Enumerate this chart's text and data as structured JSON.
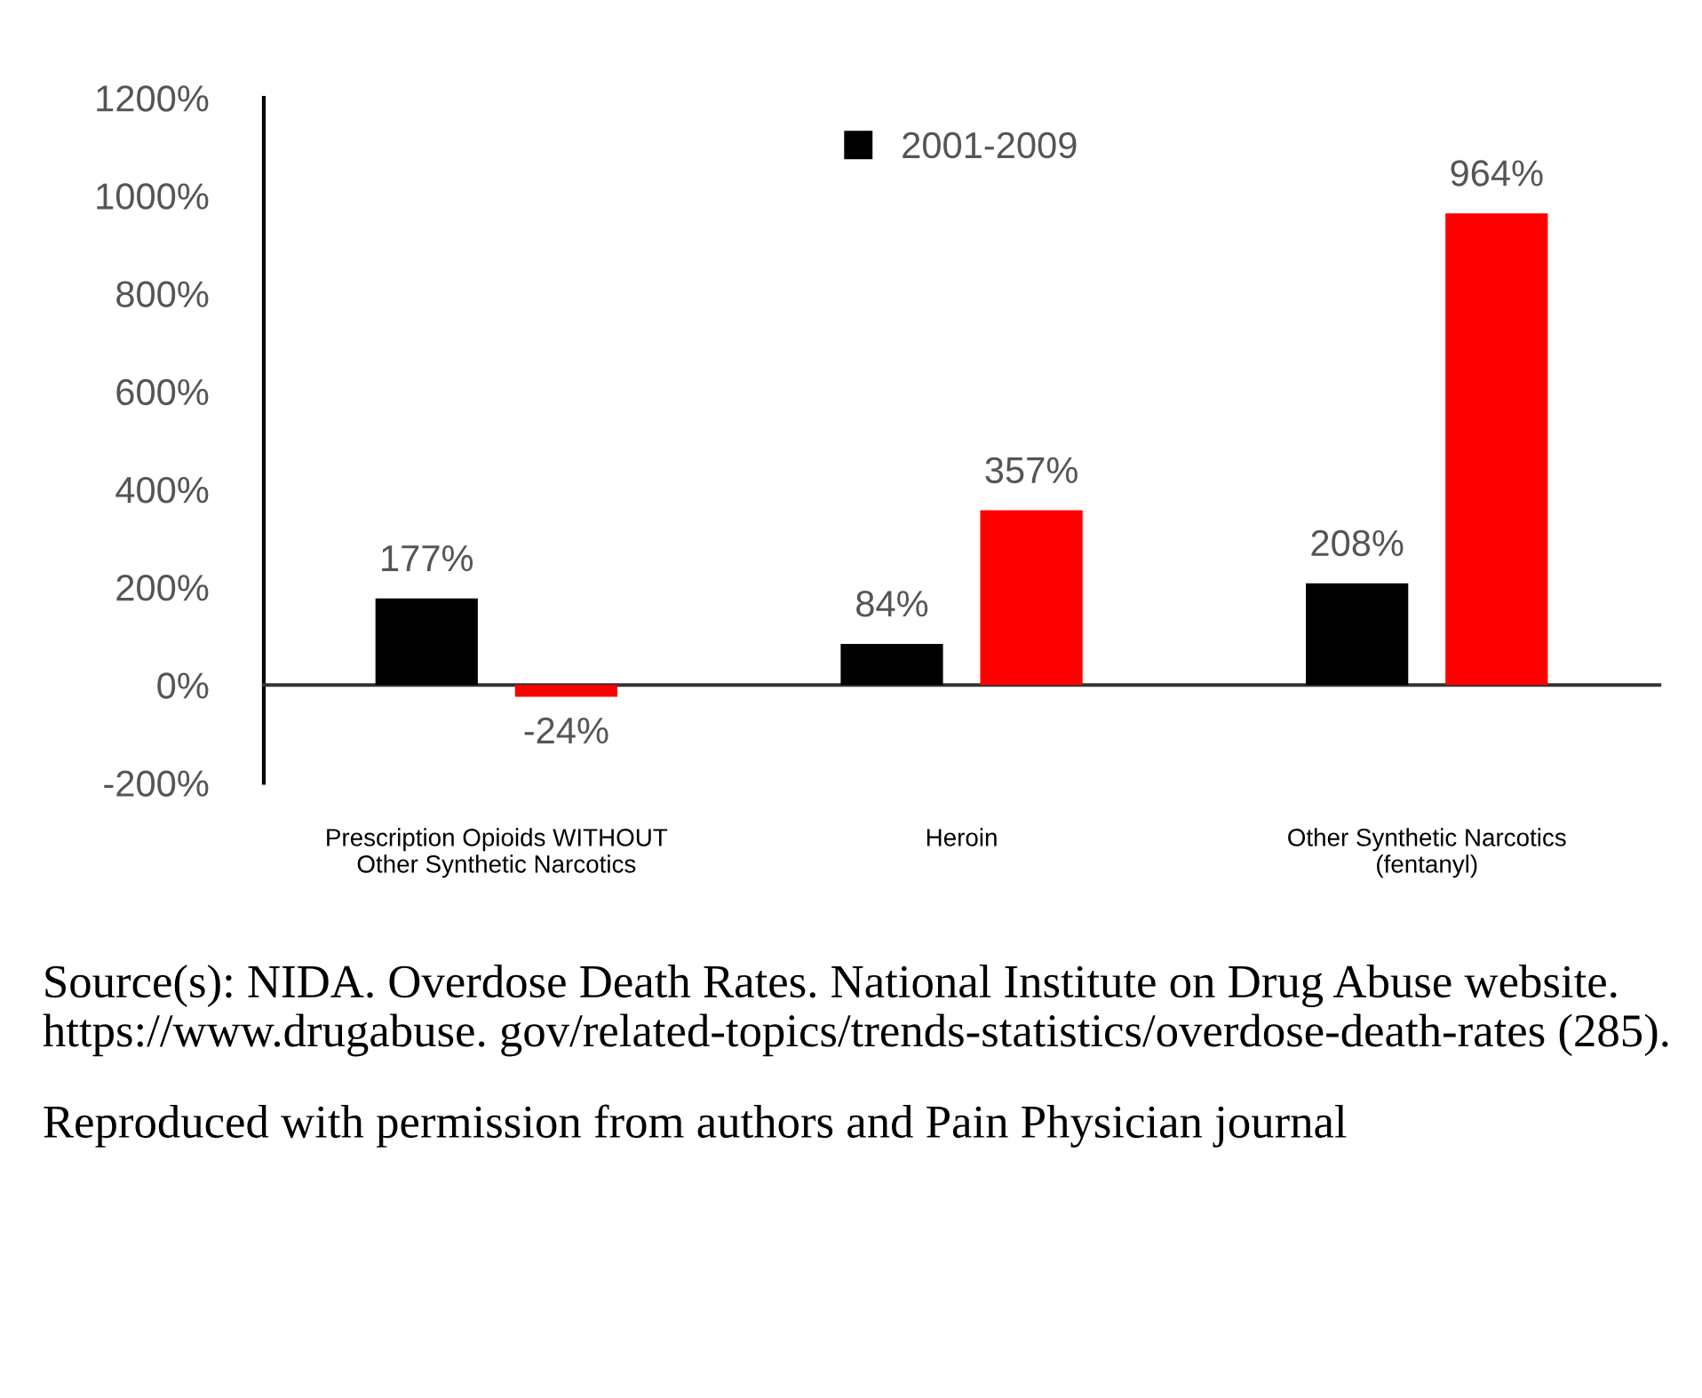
{
  "chart_data": {
    "type": "bar",
    "categories": [
      "Prescription Opioids WITHOUT\nOther Synthetic Narcotics",
      "Heroin",
      "Other Synthetic Narcotics\n(fentanyl)"
    ],
    "series": [
      {
        "name": "2001-2009",
        "color": "#000000",
        "values": [
          177,
          84,
          208
        ],
        "value_labels": [
          "177%",
          "84%",
          "208%"
        ]
      },
      {
        "color": "#ff0000",
        "values": [
          -24,
          357,
          964
        ],
        "value_labels": [
          "-24%",
          "357%",
          "964%"
        ]
      }
    ],
    "ylim": [
      -200,
      1200
    ],
    "yticks": [
      {
        "value": -200,
        "label": "-200%"
      },
      {
        "value": 0,
        "label": "0%"
      },
      {
        "value": 200,
        "label": "200%"
      },
      {
        "value": 400,
        "label": "400%"
      },
      {
        "value": 600,
        "label": "600%"
      },
      {
        "value": 800,
        "label": "800%"
      },
      {
        "value": 1000,
        "label": "1000%"
      },
      {
        "value": 1200,
        "label": "1200%"
      }
    ],
    "legend": "top",
    "annotations": [
      "Source(s): NIDA. Overdose Death Rates. National Institute on Drug Abuse website. https://www.drugabuse. gov/related-topics/trends-statistics/overdose-death-rates (285).",
      "Reproduced with permission from authors and Pain Physician journal"
    ]
  }
}
